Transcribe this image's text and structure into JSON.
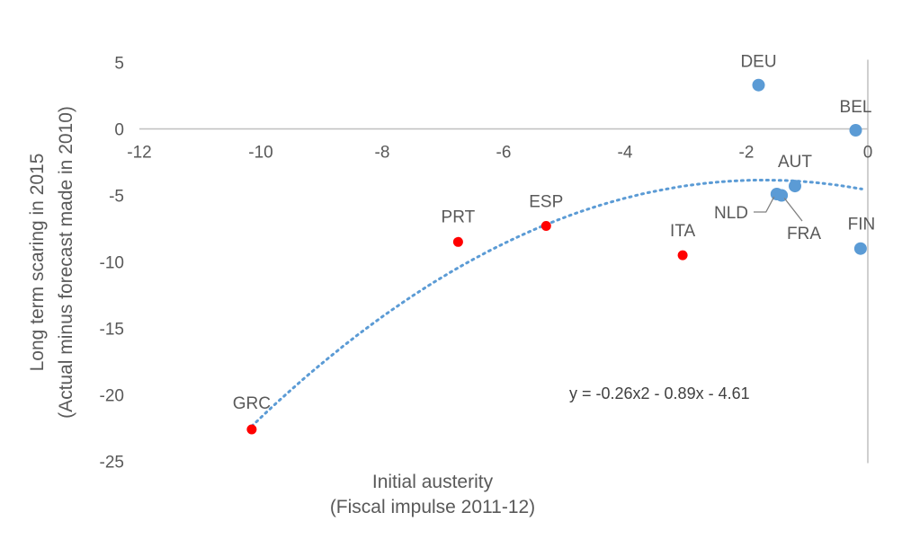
{
  "chart_data": {
    "type": "scatter",
    "xlabel": [
      "Initial austerity",
      "(Fiscal impulse 2011-12)"
    ],
    "ylabel": [
      "Long term scaring in 2015",
      "(Actual minus forecast made in 2010)"
    ],
    "xlim": [
      -12,
      0
    ],
    "ylim": [
      -25,
      5
    ],
    "xticks": [
      -12,
      -10,
      -8,
      -6,
      -4,
      -2,
      0
    ],
    "yticks": [
      5,
      0,
      -5,
      -10,
      -15,
      -20,
      -25
    ],
    "grid": false,
    "points": [
      {
        "label": "DEU",
        "x": -1.8,
        "y": 3.3,
        "color": "#5b9bd5"
      },
      {
        "label": "BEL",
        "x": -0.2,
        "y": -0.1,
        "color": "#5b9bd5"
      },
      {
        "label": "AUT",
        "x": -1.2,
        "y": -4.3,
        "color": "#5b9bd5"
      },
      {
        "label": "NLD",
        "x": -1.5,
        "y": -4.9,
        "color": "#5b9bd5"
      },
      {
        "label": "FRA",
        "x": -1.42,
        "y": -5.0,
        "color": "#5b9bd5"
      },
      {
        "label": "FIN",
        "x": -0.12,
        "y": -9.0,
        "color": "#5b9bd5"
      },
      {
        "label": "GRC",
        "x": -10.15,
        "y": -22.6,
        "color": "#ff0000"
      },
      {
        "label": "PRT",
        "x": -6.75,
        "y": -8.5,
        "color": "#ff0000"
      },
      {
        "label": "ESP",
        "x": -5.3,
        "y": -7.3,
        "color": "#ff0000"
      },
      {
        "label": "ITA",
        "x": -3.05,
        "y": -9.5,
        "color": "#ff0000"
      }
    ],
    "trendline": {
      "type": "polynomial",
      "coefficients": {
        "a": -0.26,
        "b": -0.89,
        "c": -4.61
      },
      "x_range": [
        -10.15,
        -0.1
      ],
      "equation_label": "y = -0.26x2 - 0.89x - 4.61",
      "color": "#5b9bd5"
    }
  }
}
